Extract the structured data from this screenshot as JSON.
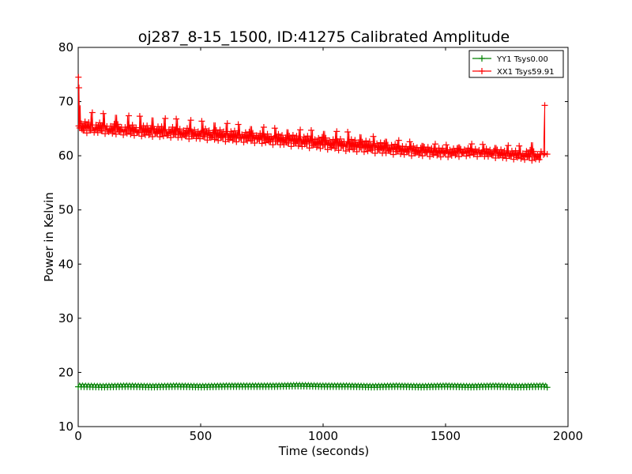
{
  "chart_data": {
    "type": "line",
    "title": "oj287_8-15_1500, ID:41275 Calibrated Amplitude",
    "xlabel": "Time (seconds)",
    "ylabel": "Power in Kelvin",
    "xlim": [
      0,
      2000
    ],
    "ylim": [
      10,
      80
    ],
    "xticks": [
      0,
      500,
      1000,
      1500,
      2000
    ],
    "yticks": [
      10,
      20,
      30,
      40,
      50,
      60,
      70,
      80
    ],
    "xtick_labels": [
      "0",
      "500",
      "1000",
      "1500",
      "2000"
    ],
    "ytick_labels": [
      "10",
      "20",
      "30",
      "40",
      "50",
      "60",
      "70",
      "80"
    ],
    "grid": false,
    "legend_position": "top-right",
    "marker": "+",
    "series": [
      {
        "name": "YY1 Tsys0.00",
        "color": "#008000",
        "x": [
          0,
          100,
          200,
          300,
          400,
          500,
          600,
          700,
          800,
          900,
          1000,
          1100,
          1200,
          1300,
          1400,
          1500,
          1600,
          1700,
          1800,
          1900,
          1915
        ],
        "y": [
          17.7,
          17.6,
          17.7,
          17.6,
          17.7,
          17.6,
          17.7,
          17.7,
          17.7,
          17.8,
          17.7,
          17.7,
          17.6,
          17.7,
          17.6,
          17.7,
          17.6,
          17.7,
          17.6,
          17.7,
          17.6
        ]
      },
      {
        "name": "XX1 Tsys59.91",
        "color": "#ff0000",
        "x": [
          0,
          10,
          50,
          100,
          150,
          200,
          250,
          300,
          350,
          400,
          450,
          500,
          550,
          600,
          650,
          700,
          750,
          800,
          850,
          900,
          950,
          1000,
          1050,
          1100,
          1150,
          1200,
          1250,
          1300,
          1350,
          1400,
          1450,
          1500,
          1550,
          1600,
          1650,
          1700,
          1750,
          1800,
          1850,
          1890,
          1905,
          1915
        ],
        "y": [
          74.5,
          65.5,
          65.3,
          65.2,
          65.0,
          64.9,
          64.8,
          64.7,
          64.6,
          64.6,
          64.4,
          64.3,
          64.2,
          64.0,
          63.9,
          63.8,
          63.7,
          63.5,
          63.3,
          63.2,
          63.0,
          62.8,
          62.6,
          62.4,
          62.3,
          62.1,
          61.9,
          61.7,
          61.5,
          61.3,
          61.2,
          61.0,
          61.0,
          61.1,
          60.9,
          60.8,
          60.6,
          60.4,
          60.3,
          60.2,
          69.0,
          60.3
        ],
        "envelope_high": [
          74.5,
          68.0,
          68.0,
          67.8,
          67.6,
          67.4,
          67.3,
          67.1,
          66.9,
          66.8,
          66.6,
          66.4,
          66.2,
          66.0,
          65.8,
          65.5,
          65.3,
          65.1,
          64.9,
          64.8,
          64.7,
          64.6,
          64.5,
          64.4,
          64.0,
          63.6,
          63.2,
          62.9,
          62.6,
          62.4,
          62.2,
          62.0,
          62.1,
          62.2,
          62.1,
          62.0,
          61.9,
          61.8,
          62.5,
          62.5,
          69.3,
          60.5
        ],
        "envelope_low": [
          64.5,
          64.2,
          64.2,
          64.1,
          63.9,
          63.8,
          63.6,
          63.5,
          63.4,
          63.3,
          63.1,
          63.0,
          62.8,
          62.6,
          62.5,
          62.4,
          62.2,
          62.0,
          61.8,
          61.6,
          61.4,
          61.2,
          61.0,
          60.8,
          60.7,
          60.5,
          60.3,
          60.2,
          60.0,
          59.9,
          59.8,
          59.7,
          59.8,
          59.9,
          59.8,
          59.6,
          59.4,
          59.3,
          59.1,
          59.0,
          60.0,
          60.0
        ]
      }
    ]
  }
}
